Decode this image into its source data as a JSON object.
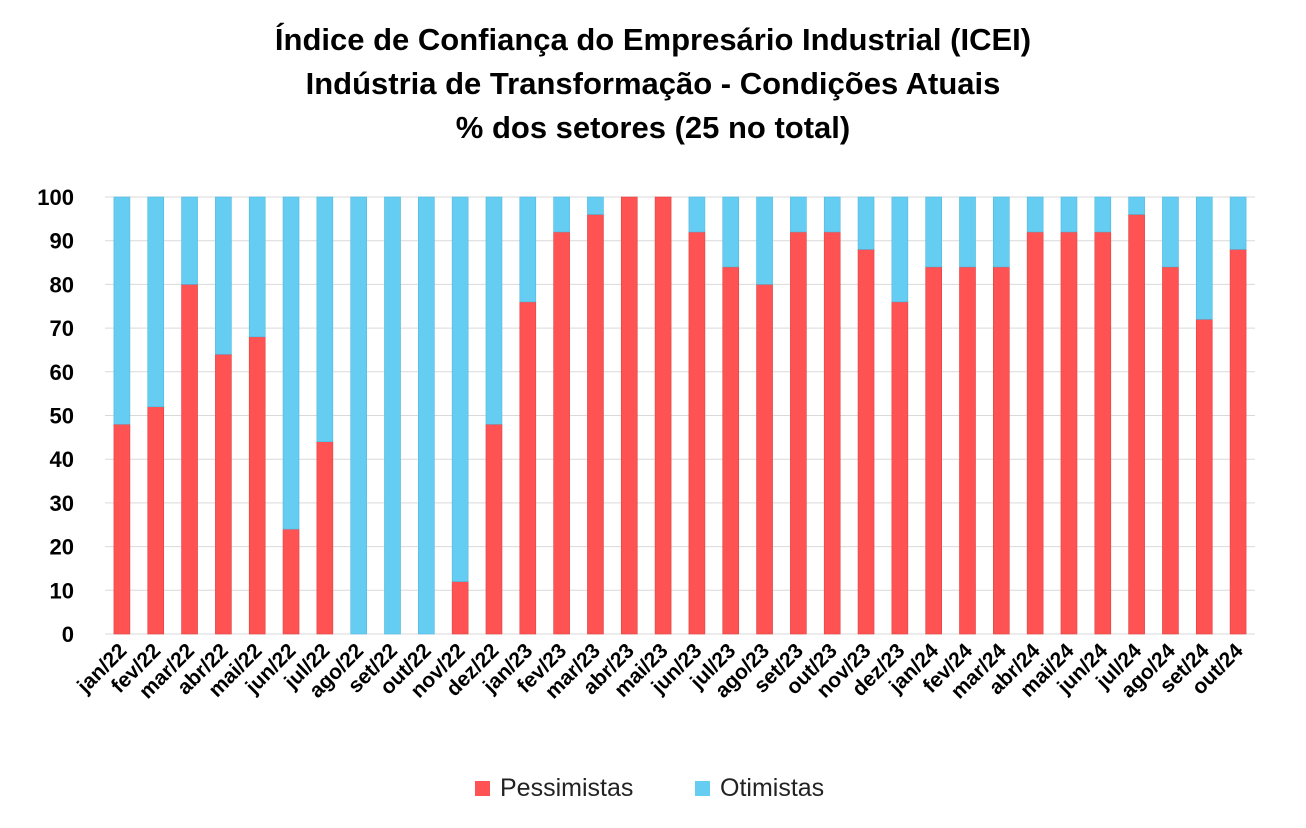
{
  "chart_data": {
    "type": "bar",
    "stacked": true,
    "title": [
      "Índice de Confiança do Empresário Industrial (ICEI)",
      "Indústria de Transformação - Condições Atuais",
      "% dos setores (25 no total)"
    ],
    "xlabel": "",
    "ylabel": "",
    "ylim": [
      0,
      100
    ],
    "yticks": [
      0,
      10,
      20,
      30,
      40,
      50,
      60,
      70,
      80,
      90,
      100
    ],
    "grid": true,
    "legend_position": "bottom",
    "categories": [
      "jan/22",
      "fev/22",
      "mar/22",
      "abr/22",
      "mai/22",
      "jun/22",
      "jul/22",
      "ago/22",
      "set/22",
      "out/22",
      "nov/22",
      "dez/22",
      "jan/23",
      "fev/23",
      "mar/23",
      "abr/23",
      "mai/23",
      "jun/23",
      "jul/23",
      "ago/23",
      "set/23",
      "out/23",
      "nov/23",
      "dez/23",
      "jan/24",
      "fev/24",
      "mar/24",
      "abr/24",
      "mai/24",
      "jun/24",
      "jul/24",
      "ago/24",
      "set/24",
      "out/24"
    ],
    "series": [
      {
        "name": "Pessimistas",
        "color": "#ff5353",
        "values": [
          48,
          52,
          80,
          64,
          68,
          24,
          44,
          0,
          0,
          0,
          12,
          48,
          76,
          92,
          96,
          100,
          100,
          92,
          84,
          80,
          92,
          92,
          88,
          76,
          84,
          84,
          84,
          92,
          92,
          92,
          96,
          84,
          72,
          88
        ]
      },
      {
        "name": "Otimistas",
        "color": "#66cdf2",
        "values": [
          52,
          48,
          20,
          36,
          32,
          76,
          56,
          100,
          100,
          100,
          88,
          52,
          24,
          8,
          4,
          0,
          0,
          8,
          16,
          20,
          8,
          8,
          12,
          24,
          16,
          16,
          16,
          8,
          8,
          8,
          4,
          16,
          28,
          12
        ]
      }
    ]
  }
}
